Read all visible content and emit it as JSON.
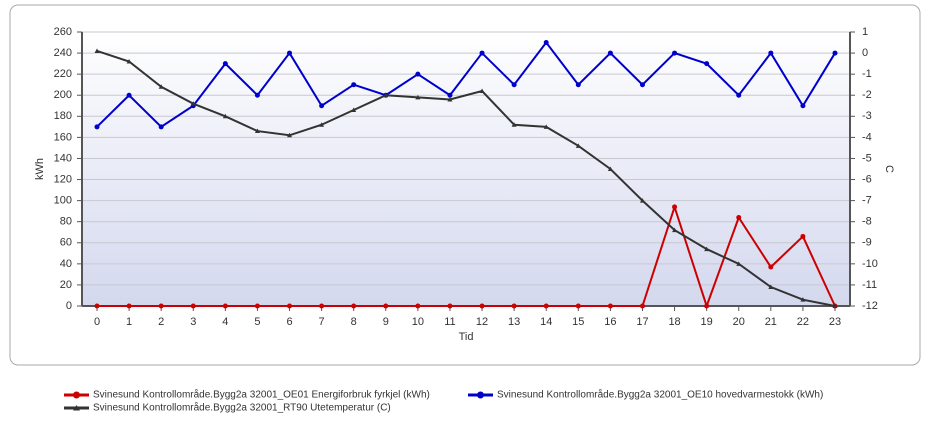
{
  "chart_data": {
    "type": "line",
    "x_label": "Tid",
    "y_label": "kWh",
    "y2_label": "C",
    "categories": [
      "0",
      "1",
      "2",
      "3",
      "4",
      "5",
      "6",
      "7",
      "8",
      "9",
      "10",
      "11",
      "12",
      "13",
      "14",
      "15",
      "16",
      "17",
      "18",
      "19",
      "20",
      "21",
      "22",
      "23"
    ],
    "ylim": [
      0,
      260
    ],
    "yticks": [
      0,
      20,
      40,
      60,
      80,
      100,
      120,
      140,
      160,
      180,
      200,
      220,
      240,
      260
    ],
    "y2lim": [
      -12,
      1
    ],
    "y2ticks": [
      1,
      0,
      -1,
      -2,
      -3,
      -4,
      -5,
      -6,
      -7,
      -8,
      -9,
      -10,
      -11,
      -12
    ],
    "grid": true,
    "series": [
      {
        "name": "Svinesund Kontrollområde.Bygg2a 32001_OE01 Energiforbruk fyrkjel (kWh)",
        "color": "#cc0000",
        "marker": "circle",
        "values": [
          0,
          0,
          0,
          0,
          0,
          0,
          0,
          0,
          0,
          0,
          0,
          0,
          0,
          0,
          0,
          0,
          0,
          0,
          94,
          0,
          84,
          37,
          66,
          0
        ]
      },
      {
        "name": "Svinesund Kontrollområde.Bygg2a 32001_OE10 hovedvarmestokk (kWh)",
        "color": "#0000cc",
        "marker": "circle",
        "values": [
          170,
          200,
          170,
          190,
          230,
          200,
          240,
          190,
          210,
          200,
          220,
          200,
          240,
          210,
          250,
          210,
          240,
          210,
          240,
          230,
          200,
          240,
          190,
          240
        ]
      },
      {
        "name": "Svinesund Kontrollområde.Bygg2a 32001_RT90 Utetemperatur (C)",
        "color": "#333333",
        "marker": "triangle",
        "axis": "y2",
        "values": [
          0.1,
          -0.4,
          -1.6,
          -2.4,
          -3,
          -3.7,
          -3.9,
          -3.4,
          -2.7,
          -2,
          -2.1,
          -2.2,
          -1.8,
          -3.4,
          -3.5,
          -4.4,
          -5.5,
          -7,
          -8.4,
          -9.3,
          -10,
          -11.1,
          -11.7,
          -12
        ]
      }
    ]
  }
}
